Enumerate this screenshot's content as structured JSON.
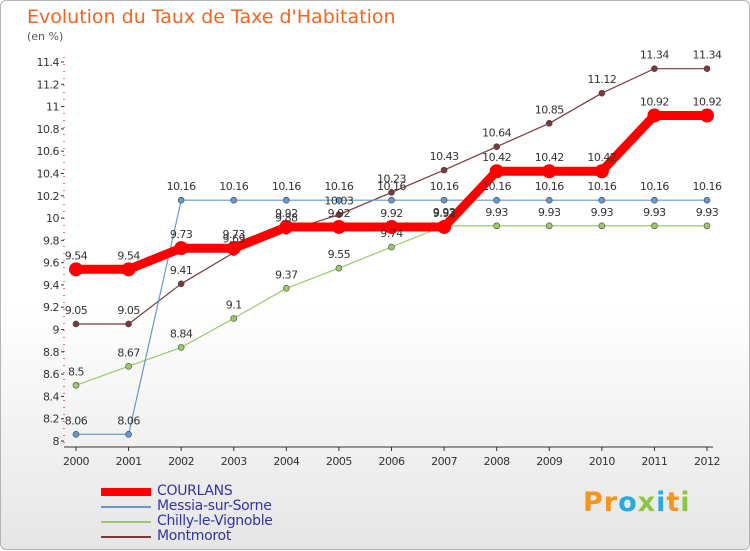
{
  "chart_data": {
    "type": "line",
    "title": "Evolution du Taux de Taxe d'Habitation",
    "subtitle": "(en %)",
    "xlabel": "",
    "ylabel": "",
    "x": [
      "2000",
      "2001",
      "2002",
      "2003",
      "2004",
      "2005",
      "2006",
      "2007",
      "2008",
      "2009",
      "2010",
      "2011",
      "2012"
    ],
    "ylim": [
      8,
      11.4
    ],
    "yticks": [
      "8",
      "8.2",
      "8.4",
      "8.6",
      "8.8",
      "9",
      "9.2",
      "9.4",
      "9.6",
      "9.8",
      "10",
      "10.2",
      "10.4",
      "10.6",
      "10.8",
      "11",
      "11.2",
      "11.4"
    ],
    "grid": false,
    "legend_position": "bottom-left",
    "series": [
      {
        "name": "COURLANS",
        "color": "#ff0000",
        "values": [
          9.54,
          9.54,
          9.73,
          9.73,
          9.92,
          9.92,
          9.92,
          9.92,
          10.42,
          10.42,
          10.42,
          10.92,
          10.92
        ],
        "labels": [
          "9.54",
          "9.54",
          "9.73",
          "9.73",
          "9.92",
          "9.92",
          "9.92",
          "9.92",
          "10.42",
          "10.42",
          "10.42",
          "10.92",
          "10.92"
        ]
      },
      {
        "name": "Messia-sur-Sorne",
        "color": "#6699cc",
        "values": [
          8.06,
          8.06,
          10.16,
          10.16,
          10.16,
          10.16,
          10.16,
          10.16,
          10.16,
          10.16,
          10.16,
          10.16,
          10.16
        ],
        "labels": [
          "8.06",
          "8.06",
          "10.16",
          "10.16",
          "10.16",
          "10.16",
          "10.16",
          "10.16",
          "10.16",
          "10.16",
          "10.16",
          "10.16",
          "10.16"
        ]
      },
      {
        "name": "Chilly-le-Vignoble",
        "color": "#99cc66",
        "values": [
          8.5,
          8.67,
          8.84,
          9.1,
          9.37,
          9.55,
          9.74,
          9.93,
          9.93,
          9.93,
          9.93,
          9.93,
          9.93
        ],
        "labels": [
          "8.5",
          "8.67",
          "8.84",
          "9.1",
          "9.37",
          "9.55",
          "9.74",
          "9.93",
          "9.93",
          "9.93",
          "9.93",
          "9.93",
          "9.93"
        ]
      },
      {
        "name": "Montmorot",
        "color": "#7a3a3a",
        "values": [
          9.05,
          9.05,
          9.41,
          9.69,
          9.88,
          10.03,
          10.23,
          10.43,
          10.64,
          10.85,
          11.12,
          11.34,
          11.34
        ],
        "labels": [
          "9.05",
          "9.05",
          "9.41",
          "9.69",
          "9.88",
          "10.03",
          "10.23",
          "10.43",
          "10.64",
          "10.85",
          "11.12",
          "11.34",
          "11.34"
        ]
      }
    ]
  },
  "brand": {
    "letters": [
      "P",
      "r",
      "o",
      "x",
      "i",
      "t",
      "i"
    ],
    "colors": [
      "#f7941d",
      "#f7941d",
      "#29abe2",
      "#8dc63f",
      "#29abe2",
      "#f7941d",
      "#8dc63f"
    ]
  }
}
